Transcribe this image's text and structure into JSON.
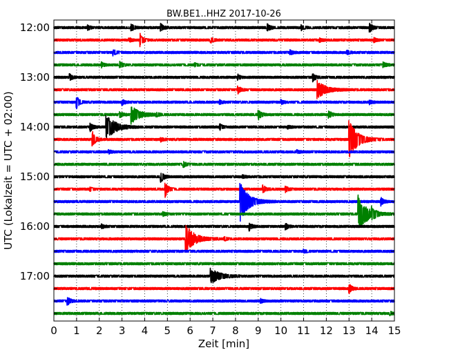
{
  "chart_data": {
    "type": "line",
    "title": "BW.BE1..HHZ 2017-10-26",
    "xlabel": "Zeit  [min]",
    "ylabel": "UTC (Lokalzeit = UTC + 02:00)",
    "xlim": [
      0,
      15
    ],
    "x_ticks": [
      "0",
      "1",
      "2",
      "3",
      "4",
      "5",
      "6",
      "7",
      "8",
      "9",
      "10",
      "11",
      "12",
      "13",
      "14",
      "15"
    ],
    "y_ticks": [
      "12:00",
      "13:00",
      "14:00",
      "15:00",
      "16:00",
      "17:00"
    ],
    "grid": "vertical dotted",
    "series_colors": [
      "#000000",
      "#ff0000",
      "#0000ff",
      "#008000"
    ],
    "traces": [
      {
        "start": "12:00",
        "color": "#000000",
        "events": [
          {
            "t": 1.5,
            "amp": 0.2
          },
          {
            "t": 3.4,
            "amp": 0.4
          },
          {
            "t": 4.7,
            "amp": 0.4
          },
          {
            "t": 9.4,
            "amp": 0.4
          },
          {
            "t": 10.9,
            "amp": 0.25
          },
          {
            "t": 13.9,
            "amp": 0.5
          }
        ]
      },
      {
        "start": "12:15",
        "color": "#ff0000",
        "events": [
          {
            "t": 3.3,
            "amp": 0.2
          },
          {
            "t": 3.8,
            "amp": 0.6
          },
          {
            "t": 6.9,
            "amp": 0.3
          },
          {
            "t": 11.7,
            "amp": 0.2
          },
          {
            "t": 14.1,
            "amp": 0.2
          }
        ]
      },
      {
        "start": "12:30",
        "color": "#0000ff",
        "events": [
          {
            "t": 2.6,
            "amp": 0.3
          },
          {
            "t": 10.4,
            "amp": 0.25
          },
          {
            "t": 12.9,
            "amp": 0.2
          }
        ]
      },
      {
        "start": "12:45",
        "color": "#008000",
        "events": [
          {
            "t": 2.1,
            "amp": 0.25
          },
          {
            "t": 2.9,
            "amp": 0.3
          },
          {
            "t": 6.2,
            "amp": 0.15
          },
          {
            "t": 14.5,
            "amp": 0.3
          }
        ]
      },
      {
        "start": "13:00",
        "color": "#000000",
        "events": [
          {
            "t": 0.7,
            "amp": 0.3
          },
          {
            "t": 8.1,
            "amp": 0.25
          },
          {
            "t": 11.4,
            "amp": 0.4
          }
        ]
      },
      {
        "start": "13:15",
        "color": "#ff0000",
        "events": [
          {
            "t": 8.1,
            "amp": 0.4
          },
          {
            "t": 11.6,
            "amp": 0.9
          }
        ]
      },
      {
        "start": "13:30",
        "color": "#0000ff",
        "events": [
          {
            "t": 1.0,
            "amp": 0.6
          },
          {
            "t": 3.0,
            "amp": 0.3
          },
          {
            "t": 7.3,
            "amp": 0.2
          },
          {
            "t": 10.0,
            "amp": 0.2
          },
          {
            "t": 13.9,
            "amp": 0.2
          }
        ]
      },
      {
        "start": "13:45",
        "color": "#008000",
        "events": [
          {
            "t": 2.9,
            "amp": 0.3
          },
          {
            "t": 3.4,
            "amp": 0.9
          },
          {
            "t": 4.5,
            "amp": 0.2
          },
          {
            "t": 9.0,
            "amp": 0.6
          },
          {
            "t": 12.1,
            "amp": 0.4
          }
        ]
      },
      {
        "start": "14:00",
        "color": "#000000",
        "events": [
          {
            "t": 1.6,
            "amp": 0.4
          },
          {
            "t": 2.3,
            "amp": 1.4
          },
          {
            "t": 7.3,
            "amp": 0.3
          },
          {
            "t": 10.3,
            "amp": 0.15
          }
        ]
      },
      {
        "start": "14:15",
        "color": "#ff0000",
        "events": [
          {
            "t": 1.7,
            "amp": 0.8
          },
          {
            "t": 4.7,
            "amp": 0.2
          },
          {
            "t": 13.0,
            "amp": 1.9
          }
        ]
      },
      {
        "start": "14:30",
        "color": "#0000ff",
        "events": [
          {
            "t": 2.4,
            "amp": 0.2
          },
          {
            "t": 10.7,
            "amp": 0.15
          }
        ]
      },
      {
        "start": "14:45",
        "color": "#008000",
        "events": [
          {
            "t": 5.7,
            "amp": 0.3
          }
        ]
      },
      {
        "start": "15:00",
        "color": "#000000",
        "events": [
          {
            "t": 4.7,
            "amp": 0.6
          },
          {
            "t": 8.3,
            "amp": 0.15
          }
        ]
      },
      {
        "start": "15:15",
        "color": "#ff0000",
        "events": [
          {
            "t": 1.6,
            "amp": 0.15
          },
          {
            "t": 4.9,
            "amp": 0.8
          },
          {
            "t": 9.2,
            "amp": 0.4
          },
          {
            "t": 10.2,
            "amp": 0.3
          }
        ]
      },
      {
        "start": "15:30",
        "color": "#0000ff",
        "events": [
          {
            "t": 8.2,
            "amp": 2.0
          },
          {
            "t": 14.4,
            "amp": 0.4
          }
        ]
      },
      {
        "start": "15:45",
        "color": "#008000",
        "events": [
          {
            "t": 4.8,
            "amp": 0.2
          },
          {
            "t": 13.4,
            "amp": 1.9
          },
          {
            "t": 14.0,
            "amp": 0.5
          }
        ]
      },
      {
        "start": "16:00",
        "color": "#000000",
        "events": [
          {
            "t": 2.1,
            "amp": 0.2
          },
          {
            "t": 8.6,
            "amp": 0.4
          },
          {
            "t": 10.2,
            "amp": 0.3
          }
        ]
      },
      {
        "start": "16:15",
        "color": "#ff0000",
        "events": [
          {
            "t": 5.8,
            "amp": 1.5
          },
          {
            "t": 7.5,
            "amp": 0.2
          }
        ]
      },
      {
        "start": "16:30",
        "color": "#0000ff",
        "events": [
          {
            "t": 11.0,
            "amp": 0.15
          }
        ]
      },
      {
        "start": "16:45",
        "color": "#008000",
        "events": []
      },
      {
        "start": "17:00",
        "color": "#000000",
        "events": [
          {
            "t": 6.9,
            "amp": 0.9
          }
        ]
      },
      {
        "start": "17:15",
        "color": "#ff0000",
        "events": [
          {
            "t": 13.0,
            "amp": 0.5
          }
        ]
      },
      {
        "start": "17:30",
        "color": "#0000ff",
        "events": [
          {
            "t": 0.6,
            "amp": 0.4
          },
          {
            "t": 9.1,
            "amp": 0.2
          }
        ]
      },
      {
        "start": "17:45",
        "color": "#008000",
        "events": [
          {
            "t": 14.8,
            "amp": 0.15
          }
        ]
      }
    ]
  }
}
